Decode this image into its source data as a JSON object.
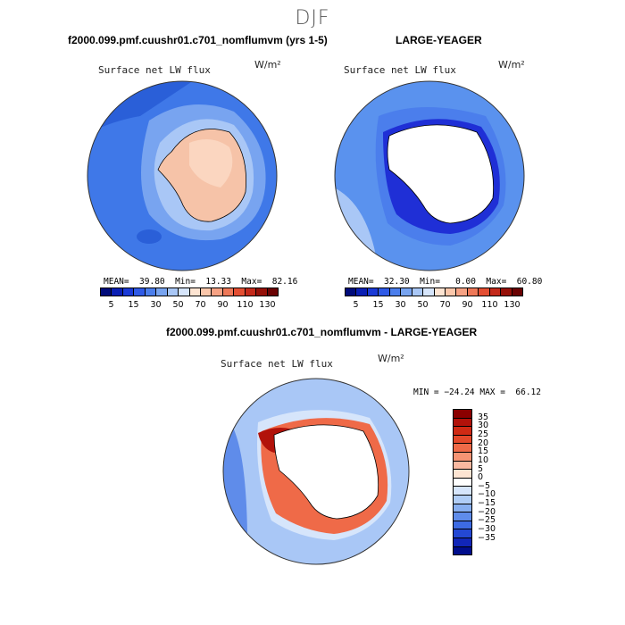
{
  "page": {
    "season_title": "DJF"
  },
  "panel_a": {
    "case_title": "f2000.099.pmf.cuushr01.c701_nomflumvm (yrs 1-5)",
    "variable": "Surface net LW flux",
    "units": "W/m²",
    "stats": "MEAN=  39.80  Min=  13.33  Max=  82.16",
    "colors": {
      "ocean": "#3f78e8",
      "ice": "#f6c3a8"
    }
  },
  "panel_b": {
    "case_title": "LARGE-YEAGER",
    "variable": "Surface net LW flux",
    "units": "W/m²",
    "stats": "MEAN=  32.30  Min=   0.00  Max=  60.80",
    "colors": {
      "ocean": "#5a92ee",
      "coast": "#1f2fd6"
    }
  },
  "shared_colorbar": {
    "colors": [
      "#000b7a",
      "#0a1fb4",
      "#1a3ad6",
      "#2f5ae6",
      "#4b7eec",
      "#78a4f0",
      "#a9c7f6",
      "#d6e5fb",
      "#fde4d2",
      "#fbc7ab",
      "#f6a284",
      "#ee7858",
      "#e34e32",
      "#c4291a",
      "#951008",
      "#6a0203"
    ],
    "labels": [
      "5",
      "15",
      "30",
      "50",
      "70",
      "90",
      "110",
      "130"
    ]
  },
  "panel_c": {
    "case_title": "f2000.099.pmf.cuushr01.c701_nomflumvm - LARGE-YEAGER",
    "variable": "Surface net LW flux",
    "units": "W/m²",
    "stats": "MIN = −24.24 MAX =  66.12",
    "colors": {
      "ocean": "#a9c7f6",
      "hot": "#c4291a"
    }
  },
  "diff_colorbar": {
    "colors": [
      "#8b0000",
      "#b2120a",
      "#d02a14",
      "#e4482a",
      "#ef6a48",
      "#f69474",
      "#fab8a0",
      "#fde4d2",
      "#ffffff",
      "#d6e5fb",
      "#b0cdf6",
      "#88aff0",
      "#5f8cea",
      "#3d6be4",
      "#2448d4",
      "#1126b8",
      "#000d8c"
    ],
    "labels": [
      "35",
      "30",
      "25",
      "20",
      "15",
      "10",
      "5",
      "0",
      "−5",
      "−10",
      "−15",
      "−20",
      "−25",
      "−30",
      "−35"
    ]
  },
  "chart_data": [
    {
      "type": "map",
      "projection": "south polar stereographic",
      "title": "f2000.099.pmf.cuushr01.c701_nomflumvm (yrs 1-5)",
      "variable": "Surface net LW flux",
      "units": "W/m²",
      "mean": 39.8,
      "min": 13.33,
      "max": 82.16,
      "contour_levels": [
        5,
        10,
        15,
        20,
        30,
        40,
        50,
        60,
        70,
        80,
        90,
        100,
        110,
        120,
        130
      ]
    },
    {
      "type": "map",
      "projection": "south polar stereographic",
      "title": "LARGE-YEAGER",
      "variable": "Surface net LW flux",
      "units": "W/m²",
      "mean": 32.3,
      "min": 0.0,
      "max": 60.8,
      "contour_levels": [
        5,
        10,
        15,
        20,
        30,
        40,
        50,
        60,
        70,
        80,
        90,
        100,
        110,
        120,
        130
      ]
    },
    {
      "type": "map",
      "projection": "south polar stereographic",
      "title": "f2000.099.pmf.cuushr01.c701_nomflumvm - LARGE-YEAGER",
      "variable": "Surface net LW flux",
      "units": "W/m²",
      "min": -24.24,
      "max": 66.12,
      "contour_levels": [
        -35,
        -30,
        -25,
        -20,
        -15,
        -10,
        -5,
        0,
        5,
        10,
        15,
        20,
        25,
        30,
        35
      ]
    }
  ]
}
